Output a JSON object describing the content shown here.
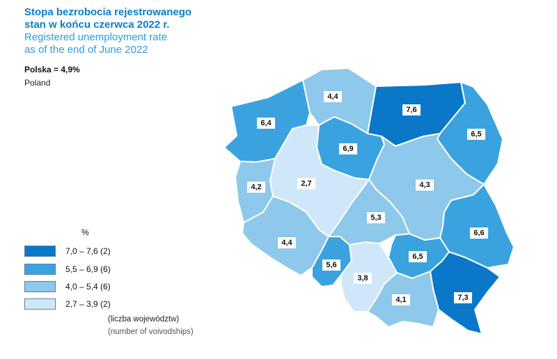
{
  "title": {
    "pl_line1": "Stopa bezrobocia rejestrowanego",
    "pl_line2": "stan w końcu czerwca 2022 r.",
    "en_line1": "Registered unemployment rate",
    "en_line2": "as of the end of June 2022"
  },
  "summary": {
    "pl": "Polska = 4,9%",
    "en": "Poland"
  },
  "legend": {
    "unit": "%",
    "classes": [
      {
        "label": "7,0 – 7,6  (2)",
        "color": "#0a77c9"
      },
      {
        "label": "5,5 – 6,9  (6)",
        "color": "#3aa3df"
      },
      {
        "label": "4,0 – 5,4  (6)",
        "color": "#8ec8eb"
      },
      {
        "label": "2,7 – 3,9  (2)",
        "color": "#cfe7f8"
      }
    ],
    "note_pl": "(liczba województw)",
    "note_en": "(number of voivodships)"
  },
  "regions": [
    {
      "value": "6,4",
      "value_num": 6.4,
      "class": 1
    },
    {
      "value": "4,4",
      "value_num": 4.4,
      "class": 2
    },
    {
      "value": "7,6",
      "value_num": 7.6,
      "class": 0
    },
    {
      "value": "6,5",
      "value_num": 6.5,
      "class": 1
    },
    {
      "value": "6,9",
      "value_num": 6.9,
      "class": 1
    },
    {
      "value": "4,2",
      "value_num": 4.2,
      "class": 2
    },
    {
      "value": "2,7",
      "value_num": 2.7,
      "class": 3
    },
    {
      "value": "4,3",
      "value_num": 4.3,
      "class": 2
    },
    {
      "value": "5,3",
      "value_num": 5.3,
      "class": 2
    },
    {
      "value": "4,4",
      "value_num": 4.4,
      "class": 2
    },
    {
      "value": "6,6",
      "value_num": 6.6,
      "class": 1
    },
    {
      "value": "5,6",
      "value_num": 5.6,
      "class": 1
    },
    {
      "value": "6,5",
      "value_num": 6.5,
      "class": 1
    },
    {
      "value": "3,8",
      "value_num": 3.8,
      "class": 3
    },
    {
      "value": "4,1",
      "value_num": 4.1,
      "class": 2
    },
    {
      "value": "7,3",
      "value_num": 7.3,
      "class": 0
    }
  ]
}
